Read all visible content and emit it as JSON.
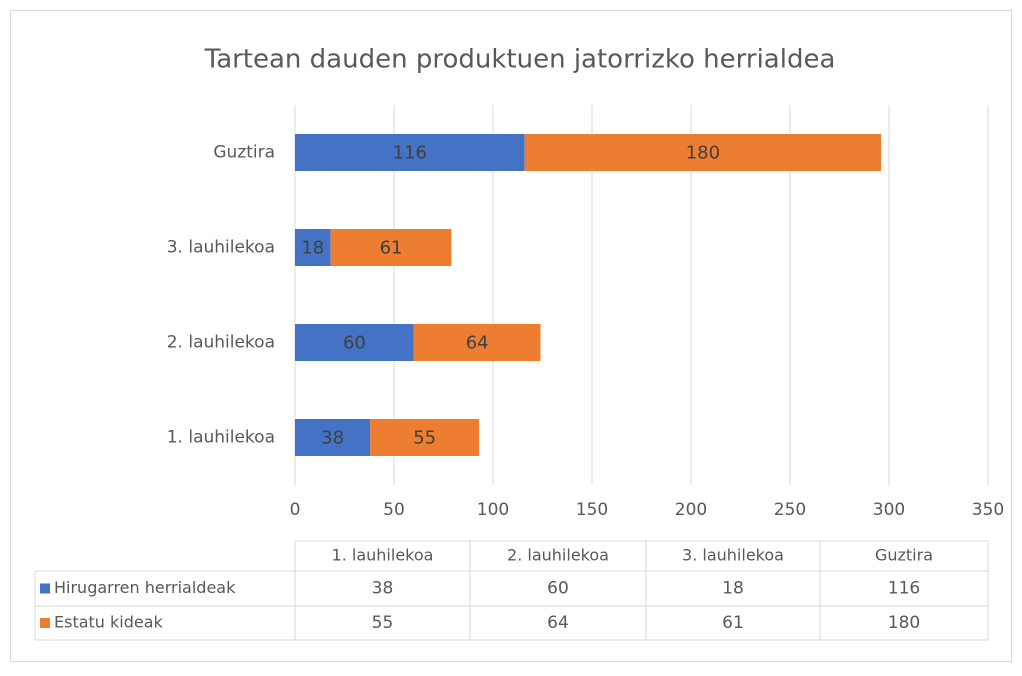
{
  "chart_data": {
    "type": "stacked_bar_horizontal",
    "title": "Tartean dauden produktuen jatorrizko herrialdea",
    "categories": [
      "1. lauhilekoa",
      "2. lauhilekoa",
      "3. lauhilekoa",
      "Guztira"
    ],
    "series": [
      {
        "name": "Hirugarren herrialdeak",
        "color": "#4472c4",
        "values": [
          38,
          60,
          18,
          116
        ]
      },
      {
        "name": "Estatu kideak",
        "color": "#ed7d31",
        "values": [
          55,
          64,
          61,
          180
        ]
      }
    ],
    "xlim": [
      0,
      350
    ],
    "xticks": [
      0,
      50,
      100,
      150,
      200,
      250,
      300,
      350
    ],
    "grid": true
  }
}
